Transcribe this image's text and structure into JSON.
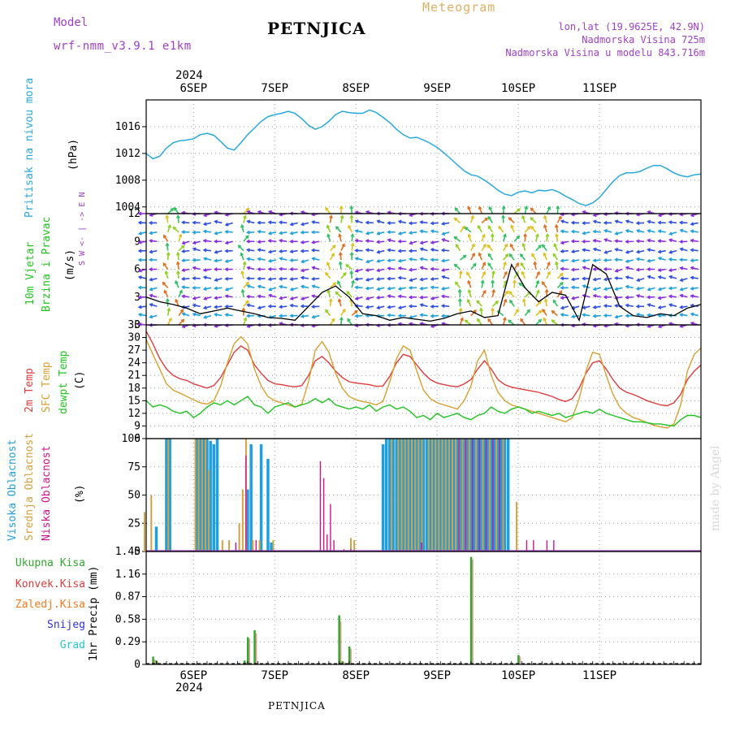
{
  "header": {
    "model_label": "Model",
    "model_name": "wrf-nmm_v3.9.1  e1km",
    "station": "PETNJICA",
    "meteogram": "Meteogram",
    "lonlat": "lon,lat (19.9625E, 42.9N)",
    "altitude": "Nadmorska Visina 725m",
    "model_altitude": "Nadmorska Visina u modelu 843.716m",
    "year_top": "2024",
    "year_bottom": "2024",
    "footer_station": "PETNJICA",
    "watermark": "made by Angel"
  },
  "colors": {
    "pressure": "#29a8e0",
    "temp2m": "#e03c3c",
    "sfc": "#d9a030",
    "dew": "#1fc41f",
    "high_cloud": "#1f9fe0",
    "mid_cloud": "#d6a040",
    "low_cloud": "#d0148c",
    "total_precip": "#2fa82f",
    "conv_precip": "#e03c3c",
    "frz_precip": "#f07a20",
    "snow": "#3030e0",
    "grad": "#20c8c8",
    "purple": "#a040c8"
  },
  "chart_data": [
    {
      "type": "line",
      "panel": "pressure",
      "ylabel_name": "Pritisak na nivou mora",
      "ylabel_unit": "(hPa)",
      "x_day_labels": [
        "6SEP",
        "7SEP",
        "8SEP",
        "9SEP",
        "10SEP",
        "11SEP"
      ],
      "x_range_hours": [
        -14,
        150
      ],
      "ylim": [
        1003,
        1020
      ],
      "yticks": [
        "1016",
        "1012",
        "1008",
        "1004"
      ],
      "ytick_values": [
        1016,
        1012,
        1008,
        1004
      ],
      "x": [
        -14,
        -12,
        -10,
        -8,
        -6,
        -4,
        -2,
        0,
        2,
        4,
        6,
        8,
        10,
        12,
        14,
        16,
        18,
        20,
        22,
        24,
        26,
        28,
        30,
        32,
        34,
        36,
        38,
        40,
        42,
        44,
        46,
        48,
        50,
        52,
        54,
        56,
        58,
        60,
        62,
        64,
        66,
        68,
        70,
        72,
        74,
        76,
        78,
        80,
        82,
        84,
        86,
        88,
        90,
        92,
        94,
        96,
        98,
        100,
        102,
        104,
        106,
        108,
        110,
        112,
        114,
        116,
        118,
        120,
        122,
        124,
        126,
        128,
        130,
        132,
        134,
        136,
        138,
        140,
        142,
        144,
        146,
        148,
        150
      ],
      "values": [
        1012.0,
        1011.2,
        1011.6,
        1012.8,
        1013.6,
        1013.9,
        1014.0,
        1014.2,
        1014.8,
        1015.0,
        1014.7,
        1013.8,
        1012.8,
        1012.5,
        1013.6,
        1014.8,
        1015.8,
        1016.8,
        1017.5,
        1017.8,
        1018.0,
        1018.3,
        1018.0,
        1017.2,
        1016.2,
        1015.6,
        1016.0,
        1016.8,
        1017.8,
        1018.3,
        1018.1,
        1018.0,
        1018.0,
        1018.5,
        1018.1,
        1017.4,
        1016.6,
        1015.6,
        1014.8,
        1014.3,
        1014.4,
        1014.0,
        1013.5,
        1012.9,
        1012.1,
        1011.2,
        1010.3,
        1009.4,
        1008.8,
        1008.6,
        1008.0,
        1007.3,
        1006.5,
        1005.9,
        1005.7,
        1006.2,
        1006.4,
        1006.1,
        1006.5,
        1006.4,
        1006.6,
        1006.2,
        1005.6,
        1005.1,
        1004.5,
        1004.2,
        1004.6,
        1005.4,
        1006.6,
        1007.8,
        1008.7,
        1009.1,
        1009.1,
        1009.3,
        1009.8,
        1010.2,
        1010.2,
        1009.7,
        1009.1,
        1008.7,
        1008.5,
        1008.8,
        1008.9
      ]
    },
    {
      "type": "line",
      "panel": "wind",
      "ylabel_name_a": "10m Vjetar",
      "ylabel_name_b": "Brzina i Pravac",
      "ylabel_unit": "(m/s)",
      "compass": "W  <- | ->  E",
      "compass_top": "N",
      "compass_bottom": "S",
      "ylim": [
        0,
        12
      ],
      "yticks": [
        "12",
        "9",
        "6",
        "3",
        "0"
      ],
      "ytick_values": [
        12,
        9,
        6,
        3,
        0
      ],
      "x": [
        -14,
        -10,
        -6,
        -2,
        2,
        6,
        10,
        14,
        18,
        22,
        26,
        30,
        34,
        38,
        42,
        46,
        50,
        54,
        58,
        62,
        66,
        70,
        74,
        78,
        82,
        86,
        90,
        94,
        98,
        102,
        106,
        110,
        114,
        118,
        122,
        126,
        130,
        134,
        138,
        142,
        146,
        150
      ],
      "values": [
        3.0,
        2.5,
        2.2,
        1.8,
        1.2,
        1.5,
        1.8,
        1.5,
        1.2,
        0.8,
        0.7,
        0.5,
        2.0,
        3.5,
        4.2,
        3.0,
        1.2,
        1.0,
        0.5,
        0.8,
        0.6,
        0.4,
        0.7,
        1.2,
        1.5,
        0.8,
        1.0,
        6.5,
        4.0,
        2.5,
        3.5,
        3.2,
        0.5,
        6.5,
        5.5,
        2.0,
        1.0,
        0.8,
        1.2,
        1.0,
        1.8,
        2.2
      ]
    },
    {
      "type": "line",
      "panel": "temperature",
      "ylabel_a": "2m Temp",
      "ylabel_b": "SFC Temp",
      "ylabel_c": "dewpt Temp",
      "ylabel_unit": "(C)",
      "ylim": [
        6,
        33
      ],
      "yticks": [
        "33",
        "30",
        "27",
        "24",
        "21",
        "18",
        "15",
        "12",
        "9",
        "6"
      ],
      "ytick_values": [
        33,
        30,
        27,
        24,
        21,
        18,
        15,
        12,
        9,
        6
      ],
      "x": [
        -14,
        -12,
        -10,
        -8,
        -6,
        -4,
        -2,
        0,
        2,
        4,
        6,
        8,
        10,
        12,
        14,
        16,
        18,
        20,
        22,
        24,
        26,
        28,
        30,
        32,
        34,
        36,
        38,
        40,
        42,
        44,
        46,
        48,
        50,
        52,
        54,
        56,
        58,
        60,
        62,
        64,
        66,
        68,
        70,
        72,
        74,
        76,
        78,
        80,
        82,
        84,
        86,
        88,
        90,
        92,
        94,
        96,
        98,
        100,
        102,
        104,
        106,
        108,
        110,
        112,
        114,
        116,
        118,
        120,
        122,
        124,
        126,
        128,
        130,
        132,
        134,
        136,
        138,
        140,
        142,
        144,
        146,
        148,
        150
      ],
      "series": [
        {
          "name": "2m Temp",
          "color_key": "temp2m",
          "values": [
            31.5,
            28.5,
            25.0,
            22.5,
            21.0,
            20.2,
            19.8,
            19.0,
            18.5,
            18.0,
            18.6,
            20.5,
            23.5,
            26.5,
            28.0,
            27.0,
            23.5,
            21.5,
            19.8,
            19.0,
            18.8,
            18.5,
            18.3,
            18.6,
            21.0,
            24.5,
            25.5,
            24.0,
            22.0,
            20.5,
            19.5,
            19.2,
            19.0,
            18.8,
            18.4,
            18.5,
            20.8,
            24.0,
            26.0,
            25.5,
            23.5,
            21.5,
            20.0,
            19.2,
            18.8,
            18.5,
            18.3,
            19.0,
            20.0,
            22.5,
            24.5,
            22.5,
            20.0,
            18.8,
            18.2,
            17.9,
            17.6,
            17.3,
            17.0,
            16.5,
            16.0,
            15.3,
            14.8,
            15.5,
            18.0,
            21.5,
            24.0,
            24.5,
            22.5,
            20.0,
            18.0,
            17.0,
            16.5,
            15.8,
            15.0,
            14.5,
            14.0,
            13.8,
            14.5,
            16.5,
            20.0,
            22.0,
            23.5
          ]
        },
        {
          "name": "SFC Temp",
          "color_key": "sfc",
          "values": [
            29.5,
            26.0,
            22.5,
            19.0,
            17.5,
            16.8,
            16.0,
            15.2,
            14.5,
            14.2,
            15.0,
            18.5,
            24.0,
            28.5,
            30.2,
            28.5,
            22.5,
            18.5,
            16.0,
            15.0,
            14.5,
            14.0,
            13.5,
            14.2,
            19.5,
            27.0,
            29.0,
            26.5,
            21.5,
            18.0,
            16.0,
            15.2,
            14.8,
            14.5,
            14.0,
            14.8,
            19.5,
            25.0,
            28.0,
            27.0,
            22.0,
            17.5,
            15.5,
            14.5,
            14.0,
            13.5,
            13.0,
            15.0,
            18.5,
            24.5,
            27.0,
            21.0,
            17.0,
            15.0,
            14.0,
            13.5,
            13.0,
            12.5,
            12.0,
            11.5,
            11.0,
            10.5,
            10.0,
            11.0,
            15.5,
            22.0,
            26.5,
            26.0,
            21.0,
            16.5,
            13.5,
            12.0,
            11.0,
            10.5,
            9.8,
            9.2,
            8.8,
            8.5,
            9.5,
            14.0,
            22.0,
            26.0,
            27.5
          ]
        },
        {
          "name": "dewpt Temp",
          "color_key": "dew",
          "values": [
            15.0,
            13.5,
            14.0,
            13.5,
            12.5,
            12.0,
            12.5,
            11.0,
            12.0,
            13.5,
            14.5,
            14.0,
            15.0,
            14.0,
            15.0,
            16.0,
            14.0,
            13.5,
            12.0,
            13.5,
            14.0,
            14.5,
            13.5,
            14.0,
            14.5,
            15.5,
            14.5,
            15.5,
            14.0,
            13.5,
            13.0,
            13.5,
            13.0,
            14.0,
            12.5,
            13.5,
            14.0,
            13.0,
            13.5,
            12.5,
            11.0,
            11.5,
            10.5,
            12.0,
            11.0,
            11.5,
            12.0,
            11.0,
            10.5,
            11.5,
            12.0,
            13.5,
            12.5,
            12.0,
            13.0,
            13.5,
            13.0,
            12.0,
            12.5,
            12.0,
            11.5,
            12.0,
            11.0,
            11.5,
            12.0,
            12.5,
            12.0,
            13.0,
            12.0,
            11.5,
            11.0,
            10.5,
            10.0,
            10.0,
            9.8,
            9.5,
            9.5,
            9.2,
            9.0,
            10.5,
            11.5,
            11.5,
            11.0
          ]
        }
      ]
    },
    {
      "type": "bar",
      "panel": "clouds",
      "ylabel_a": "Visoka Oblacnost",
      "ylabel_b": "Srednja Oblacnost",
      "ylabel_c": "Niska Oblacnost",
      "ylabel_unit": "(%)",
      "ylim": [
        0,
        100
      ],
      "yticks": [
        "100",
        "75",
        "50",
        "25",
        "0"
      ],
      "ytick_values": [
        100,
        75,
        50,
        25,
        0
      ],
      "series": [
        {
          "name": "Visoka Oblacnost",
          "color_key": "high_cloud",
          "x": [
            -11,
            -8,
            -7,
            1,
            2,
            3,
            4,
            5,
            6,
            7,
            16,
            17,
            20,
            22,
            23,
            56,
            57,
            58,
            59,
            60,
            61,
            62,
            63,
            64,
            65,
            66,
            67,
            68,
            69,
            70,
            71,
            72,
            73,
            74,
            75,
            76,
            77,
            78,
            79,
            80,
            81,
            82,
            83,
            84,
            85,
            86,
            87,
            88,
            89,
            90,
            91,
            92,
            93
          ],
          "values": [
            22,
            100,
            100,
            100,
            100,
            100,
            100,
            98,
            95,
            100,
            55,
            95,
            95,
            82,
            8,
            95,
            100,
            100,
            100,
            100,
            100,
            100,
            100,
            100,
            100,
            100,
            100,
            100,
            100,
            100,
            100,
            100,
            100,
            100,
            100,
            100,
            100,
            100,
            100,
            100,
            100,
            100,
            100,
            100,
            100,
            100,
            100,
            100,
            100,
            100,
            100,
            100,
            100
          ]
        },
        {
          "name": "Srednja Oblacnost",
          "color_key": "mid_cloud",
          "x": [
            -14,
            -12,
            -7,
            1,
            2,
            3,
            4,
            5,
            9,
            11,
            14,
            15,
            16,
            18,
            20,
            24,
            47,
            48,
            59,
            61,
            62,
            63,
            64,
            65,
            66,
            67,
            68,
            70,
            71,
            72,
            73,
            74,
            75,
            76,
            77,
            78,
            79,
            80,
            81,
            82,
            84,
            86,
            88,
            90,
            92,
            96
          ],
          "values": [
            35,
            50,
            100,
            100,
            100,
            100,
            100,
            72,
            10,
            10,
            25,
            55,
            100,
            10,
            10,
            10,
            12,
            10,
            100,
            100,
            100,
            100,
            100,
            100,
            100,
            100,
            100,
            100,
            100,
            100,
            100,
            100,
            100,
            100,
            100,
            100,
            100,
            100,
            100,
            100,
            100,
            100,
            100,
            100,
            100,
            44
          ]
        },
        {
          "name": "Niska Oblacnost",
          "color_key": "low_cloud",
          "x": [
            12,
            15,
            18,
            37,
            38,
            39,
            40,
            41,
            44,
            46,
            67,
            78,
            80,
            82,
            84,
            86,
            88,
            90,
            98,
            100,
            104,
            106
          ],
          "values": [
            8,
            85,
            10,
            80,
            65,
            15,
            42,
            10,
            2,
            2,
            8,
            100,
            100,
            100,
            100,
            100,
            100,
            100,
            10,
            10,
            10,
            10
          ]
        }
      ]
    },
    {
      "type": "bar",
      "panel": "precipitation",
      "ylabel_unit": "1hr Precip (mm)",
      "legend": [
        "Ukupna  Kisa",
        "Konvek.Kisa",
        "Zaledj.Kisa",
        "Snijeg",
        "Grad"
      ],
      "ylim": [
        0,
        1.45
      ],
      "yticks": [
        "1.45",
        "1.16",
        "0.87",
        "0.58",
        "0.29",
        "0"
      ],
      "ytick_values": [
        1.45,
        1.16,
        0.87,
        0.58,
        0.29,
        0
      ],
      "series": [
        {
          "name": "Ukupna  Kisa",
          "color_key": "total_precip",
          "x": [
            -12,
            -11,
            15,
            16,
            18,
            43,
            44,
            46,
            82,
            96
          ],
          "values": [
            0.1,
            0.05,
            0.05,
            0.35,
            0.44,
            0.63,
            0.04,
            0.23,
            1.38,
            0.12
          ]
        },
        {
          "name": "Konvek.Kisa",
          "color_key": "conv_precip",
          "x": [
            -12,
            -11,
            15,
            16,
            18,
            43,
            44,
            46,
            82,
            96
          ],
          "values": [
            0.06,
            0.03,
            0.03,
            0.33,
            0.4,
            0.55,
            0.03,
            0.2,
            1.35,
            0.1
          ]
        }
      ]
    }
  ]
}
